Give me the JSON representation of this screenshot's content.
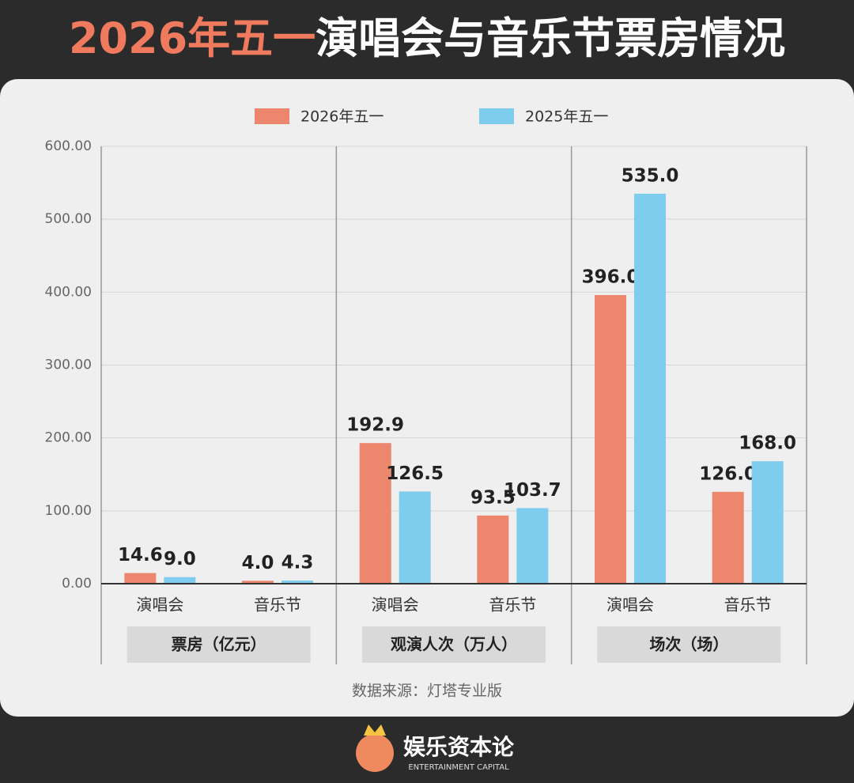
{
  "chart_data": {
    "type": "bar",
    "title_highlight": "2026年五一",
    "title": "演唱会与音乐节票房情况",
    "categories": [
      "演唱会",
      "音乐节",
      "演唱会",
      "音乐节",
      "演唱会",
      "音乐节"
    ],
    "groups": [
      "票房（亿元）",
      "观演人次（万人）",
      "场次（场）"
    ],
    "series": [
      {
        "name": "2026年五一",
        "color": "#ec866d",
        "values": [
          14.6,
          4.0,
          192.9,
          93.5,
          396.0,
          126.0
        ],
        "value_labels": [
          "14.6",
          "4.0",
          "192.9",
          "93.5",
          "396.0",
          "126.0"
        ]
      },
      {
        "name": "2025年五一",
        "color": "#7fcdee",
        "values": [
          9.0,
          4.3,
          126.5,
          103.7,
          535.0,
          168.0
        ],
        "value_labels": [
          "9.0",
          "4.3",
          "126.5",
          "103.7",
          "535.0",
          "168.0"
        ]
      }
    ],
    "ylim": [
      0,
      600
    ],
    "yticks": [
      {
        "value": 0,
        "label": "0.00"
      },
      {
        "value": 100,
        "label": "100.00"
      },
      {
        "value": 200,
        "label": "200.00"
      },
      {
        "value": 300,
        "label": "300.00"
      },
      {
        "value": 400,
        "label": "400.00"
      },
      {
        "value": 500,
        "label": "500.00"
      },
      {
        "value": 600,
        "label": "600.00"
      }
    ],
    "grid": true,
    "legend": "top",
    "source": "数据来源：灯塔专业版"
  },
  "footer": {
    "brand": "娱乐资本论",
    "brand_en": "ENTERTAINMENT CAPITAL"
  }
}
